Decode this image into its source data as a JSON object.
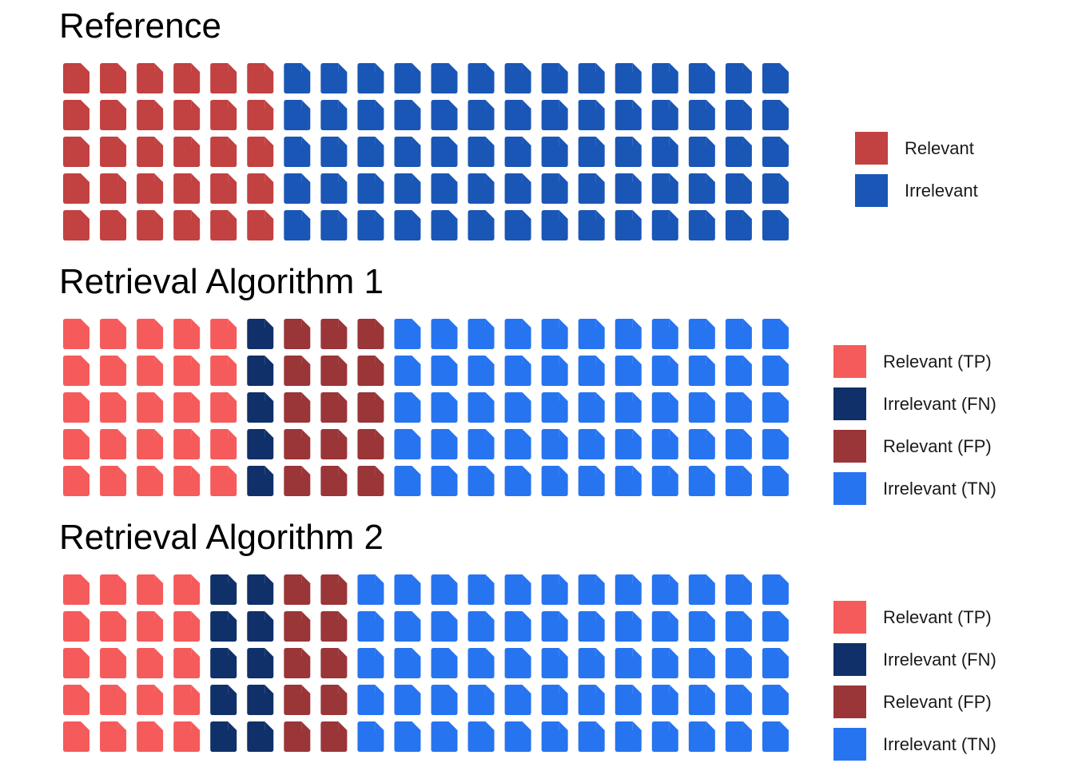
{
  "chart_data": [
    {
      "type": "waffle",
      "title": "Reference",
      "rows": 5,
      "columns": 20,
      "icon": "document-icon",
      "column_groups": [
        {
          "label": "Relevant",
          "columns": 6,
          "color": "#c24141"
        },
        {
          "label": "Irrelevant",
          "columns": 14,
          "color": "#1a56b5"
        }
      ],
      "legend": [
        {
          "label": "Relevant",
          "color": "#c24141"
        },
        {
          "label": "Irrelevant",
          "color": "#1a56b5"
        }
      ]
    },
    {
      "type": "waffle",
      "title": "Retrieval Algorithm 1",
      "rows": 5,
      "columns": 20,
      "icon": "document-icon",
      "column_groups": [
        {
          "label": "Relevant (TP)",
          "columns": 5,
          "color": "#f55b5b"
        },
        {
          "label": "Irrelevant (FN)",
          "columns": 1,
          "color": "#10306a"
        },
        {
          "label": "Relevant (FP)",
          "columns": 3,
          "color": "#9a3538"
        },
        {
          "label": "Irrelevant (TN)",
          "columns": 11,
          "color": "#2774f0"
        }
      ],
      "legend": [
        {
          "label": "Relevant (TP)",
          "color": "#f55b5b"
        },
        {
          "label": "Irrelevant (FN)",
          "color": "#10306a"
        },
        {
          "label": "Relevant (FP)",
          "color": "#9a3538"
        },
        {
          "label": "Irrelevant (TN)",
          "color": "#2774f0"
        }
      ]
    },
    {
      "type": "waffle",
      "title": "Retrieval Algorithm 2",
      "rows": 5,
      "columns": 20,
      "icon": "document-icon",
      "column_groups": [
        {
          "label": "Relevant (TP)",
          "columns": 4,
          "color": "#f55b5b"
        },
        {
          "label": "Irrelevant (FN)",
          "columns": 2,
          "color": "#10306a"
        },
        {
          "label": "Relevant (FP)",
          "columns": 2,
          "color": "#9a3538"
        },
        {
          "label": "Irrelevant (TN)",
          "columns": 12,
          "color": "#2774f0"
        }
      ],
      "legend": [
        {
          "label": "Relevant (TP)",
          "color": "#f55b5b"
        },
        {
          "label": "Irrelevant (FN)",
          "color": "#10306a"
        },
        {
          "label": "Relevant (FP)",
          "color": "#9a3538"
        },
        {
          "label": "Irrelevant (TN)",
          "color": "#2774f0"
        }
      ]
    }
  ]
}
